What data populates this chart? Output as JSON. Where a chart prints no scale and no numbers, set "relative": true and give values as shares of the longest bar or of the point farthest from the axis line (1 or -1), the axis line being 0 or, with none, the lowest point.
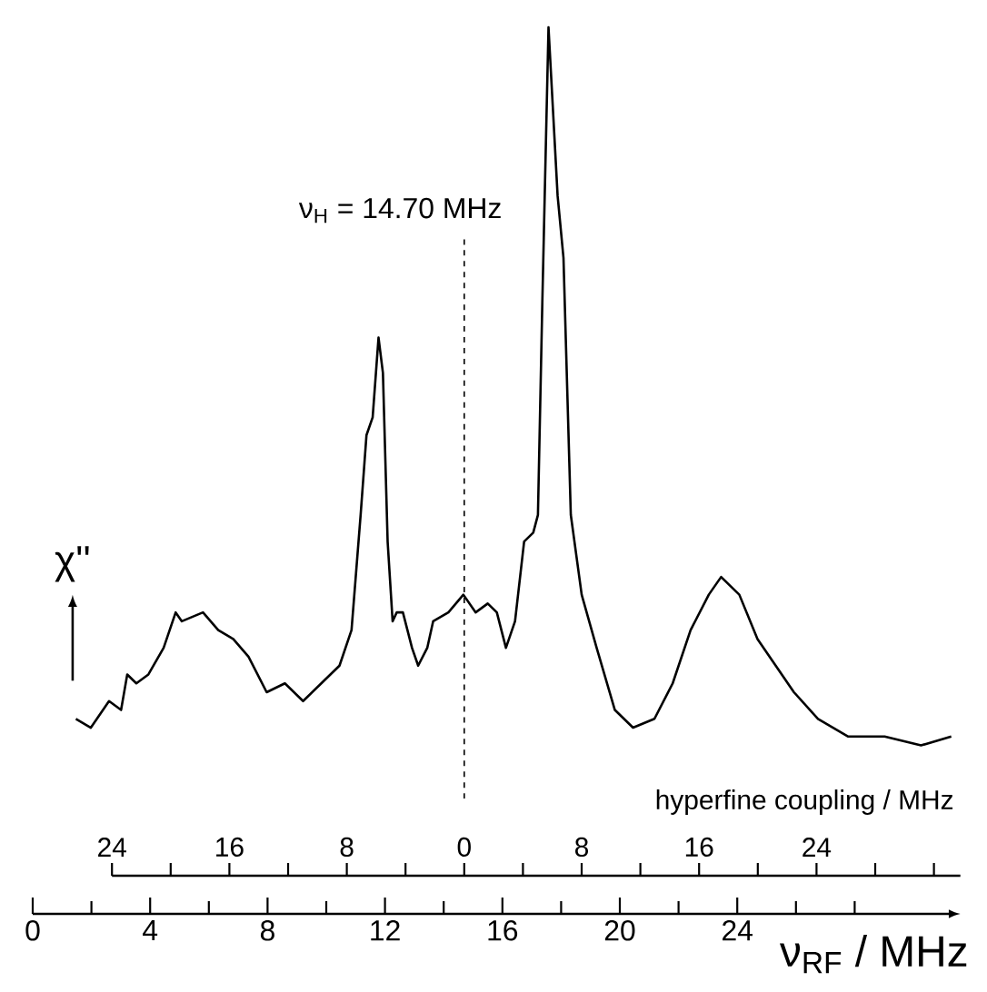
{
  "chart_data": {
    "type": "line",
    "relative": true,
    "xlabel": "ν$_{RF}$ / MHz",
    "ylabel": "χ''",
    "x2label": "hyperfine coupling / MHz",
    "xlim": [
      0,
      31.6
    ],
    "xticks": [
      0,
      4,
      8,
      12,
      16,
      20,
      24
    ],
    "x2lim": [
      -24,
      33.8
    ],
    "x2ticks": [
      {
        "value": -24,
        "label": "24"
      },
      {
        "value": -16,
        "label": "16"
      },
      {
        "value": -8,
        "label": "8"
      },
      0,
      8,
      16,
      24
    ],
    "ref_lines": [
      {
        "axis": "x",
        "value": 14.7,
        "label": "ν$_{H}$ = 14.70 MHz",
        "line_style": "dashed"
      }
    ],
    "series": [
      {
        "color": "#000000",
        "x": [
          1.47,
          1.98,
          2.6,
          3.01,
          3.22,
          3.53,
          3.94,
          4.46,
          4.87,
          5.08,
          5.8,
          6.32,
          6.83,
          7.35,
          7.97,
          8.59,
          9.21,
          9.83,
          10.45,
          10.86,
          11.17,
          11.37,
          11.58,
          11.78,
          11.93,
          12.09,
          12.26,
          12.4,
          12.61,
          12.92,
          13.13,
          13.44,
          13.64,
          14.16,
          14.67,
          15.09,
          15.5,
          15.81,
          16.12,
          16.43,
          16.74,
          17.05,
          17.21,
          17.36,
          17.57,
          17.88,
          18.08,
          18.33,
          18.7,
          19.21,
          19.83,
          20.45,
          21.18,
          21.8,
          22.41,
          23.03,
          23.45,
          24.07,
          24.69,
          25.31,
          25.93,
          26.75,
          27.78,
          29.02,
          30.26,
          31.29
        ],
        "values": [
          0.22,
          0.21,
          0.24,
          0.23,
          0.27,
          0.26,
          0.27,
          0.3,
          0.34,
          0.33,
          0.34,
          0.32,
          0.31,
          0.29,
          0.25,
          0.26,
          0.24,
          0.26,
          0.28,
          0.32,
          0.45,
          0.54,
          0.56,
          0.65,
          0.61,
          0.42,
          0.33,
          0.34,
          0.34,
          0.3,
          0.28,
          0.3,
          0.33,
          0.34,
          0.36,
          0.34,
          0.35,
          0.34,
          0.3,
          0.33,
          0.42,
          0.43,
          0.45,
          0.69,
          1.0,
          0.81,
          0.74,
          0.45,
          0.36,
          0.3,
          0.23,
          0.21,
          0.22,
          0.26,
          0.32,
          0.36,
          0.38,
          0.36,
          0.31,
          0.28,
          0.25,
          0.22,
          0.2,
          0.2,
          0.19,
          0.2
        ]
      }
    ]
  }
}
